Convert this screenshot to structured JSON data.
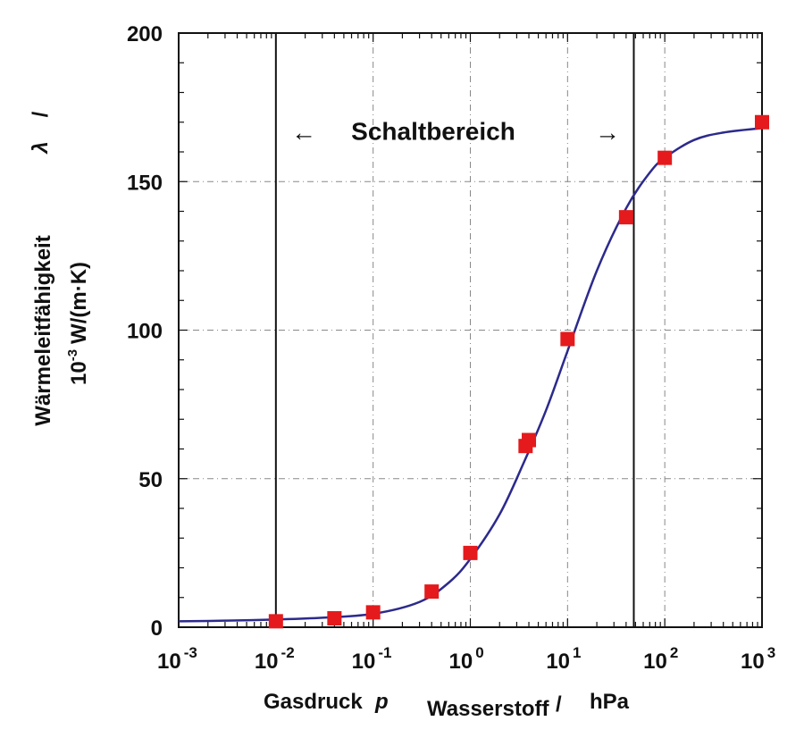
{
  "chart_data": {
    "type": "scatter",
    "title": "",
    "x_scale": "log",
    "xlim": [
      0.001,
      1000
    ],
    "ylim": [
      0,
      200
    ],
    "x_tick_labels": [
      {
        "base": "10",
        "exp": "-3",
        "value": 0.001
      },
      {
        "base": "10",
        "exp": "-2",
        "value": 0.01
      },
      {
        "base": "10",
        "exp": "-1",
        "value": 0.1
      },
      {
        "base": "10",
        "exp": "0",
        "value": 1
      },
      {
        "base": "10",
        "exp": "1",
        "value": 10
      },
      {
        "base": "10",
        "exp": "2",
        "value": 100
      },
      {
        "base": "10",
        "exp": "3",
        "value": 1000
      }
    ],
    "y_ticks": [
      0,
      50,
      100,
      150,
      200
    ],
    "y_tick_labels": [
      "0",
      "50",
      "100",
      "150",
      "200"
    ],
    "grid": true,
    "xlabel": {
      "main": "Gasdruck",
      "symbol": "p",
      "subscript": "Wasserstoff",
      "slash": "/",
      "unit": "hPa"
    },
    "ylabel": {
      "line1": "Wärmeleitfähigkeit",
      "symbol": "λ",
      "slash": "/",
      "unit_base": "10",
      "unit_exp": "-3",
      "unit_rest": "W/(m·K)"
    },
    "series": [
      {
        "kind": "scatter",
        "color": "#e41a1c",
        "marker": "square",
        "points": [
          {
            "x": 0.01,
            "y": 2
          },
          {
            "x": 0.04,
            "y": 3
          },
          {
            "x": 0.1,
            "y": 5
          },
          {
            "x": 0.4,
            "y": 12
          },
          {
            "x": 1,
            "y": 25
          },
          {
            "x": 3.7,
            "y": 61
          },
          {
            "x": 4,
            "y": 63
          },
          {
            "x": 10,
            "y": 97
          },
          {
            "x": 40,
            "y": 138
          },
          {
            "x": 100,
            "y": 158
          },
          {
            "x": 1000,
            "y": 170
          }
        ]
      },
      {
        "kind": "line",
        "color": "#2c2a8c",
        "points": [
          {
            "x": 0.001,
            "y": 2
          },
          {
            "x": 0.003,
            "y": 2.2
          },
          {
            "x": 0.01,
            "y": 2.6
          },
          {
            "x": 0.03,
            "y": 3.2
          },
          {
            "x": 0.1,
            "y": 4.5
          },
          {
            "x": 0.3,
            "y": 8.5
          },
          {
            "x": 0.6,
            "y": 15
          },
          {
            "x": 1,
            "y": 23
          },
          {
            "x": 2,
            "y": 38
          },
          {
            "x": 3.5,
            "y": 55
          },
          {
            "x": 6,
            "y": 73
          },
          {
            "x": 10,
            "y": 93
          },
          {
            "x": 20,
            "y": 120
          },
          {
            "x": 40,
            "y": 141
          },
          {
            "x": 70,
            "y": 153
          },
          {
            "x": 100,
            "y": 158
          },
          {
            "x": 200,
            "y": 164
          },
          {
            "x": 400,
            "y": 166.5
          },
          {
            "x": 1000,
            "y": 168
          }
        ]
      }
    ],
    "vertical_lines": [
      0.01,
      48
    ],
    "annotation": {
      "text": "Schaltbereich",
      "left_arrow": "←",
      "right_arrow": "→",
      "y": 167
    }
  }
}
